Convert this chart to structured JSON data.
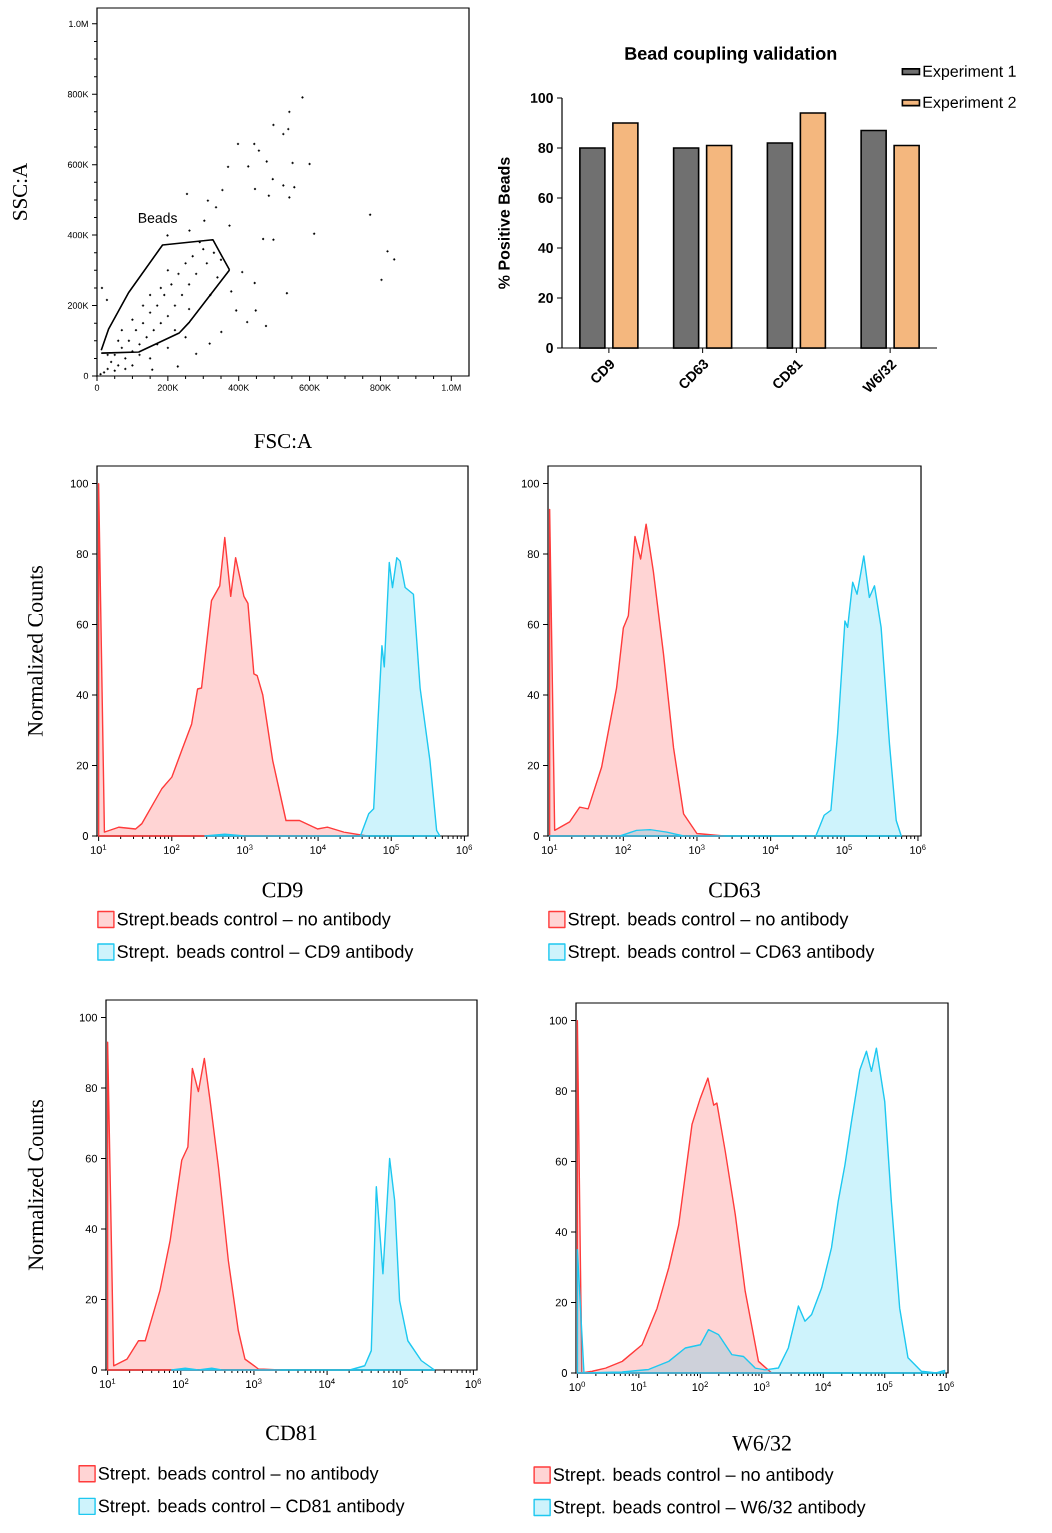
{
  "chart_data": [
    {
      "type": "scatter",
      "xlabel": "FSC:A",
      "ylabel": "SSC:A",
      "xlim": [
        0,
        1050000
      ],
      "ylim": [
        0,
        1045000
      ],
      "xticks": [
        0,
        {
          "value": 200000,
          "label": "200K"
        },
        {
          "value": 400000,
          "label": "400K"
        },
        {
          "value": 600000,
          "label": "600K"
        },
        {
          "value": 800000,
          "label": "800K"
        },
        {
          "value": 1000000,
          "label": "1.0M"
        }
      ],
      "yticks": [
        0,
        {
          "value": 200000,
          "label": "200K"
        },
        {
          "value": 400000,
          "label": "400K"
        },
        {
          "value": 600000,
          "label": "600K"
        },
        {
          "value": 800000,
          "label": "800K"
        },
        {
          "value": 1000000,
          "label": "1.0M"
        }
      ],
      "annotations": [
        "Beads"
      ],
      "series": [
        {
          "type": "scatter",
          "marker": "circle",
          "color": "#000000",
          "x": [
            580000,
            543000,
            498000,
            540000,
            526000,
            398000,
            444000,
            457000,
            600000,
            552000,
            370000,
            427000,
            496000,
            479000,
            557000,
            526000,
            543000,
            485000,
            446000,
            354000,
            254000,
            771000,
            613000,
            820000,
            839000,
            803000,
            536000,
            445000,
            410000,
            393000,
            448000,
            424000,
            477000,
            379000,
            498000,
            469000,
            313000,
            336000,
            303000,
            374000,
            261000,
            199000,
            14000,
            28000,
            228000,
            351000,
            318000,
            280000,
            156000,
            30000,
            40000,
            50000,
            60000,
            70000,
            80000,
            90000,
            100000,
            110000,
            120000,
            130000,
            140000,
            150000,
            160000,
            170000,
            180000,
            190000,
            200000,
            210000,
            220000,
            230000,
            240000,
            250000,
            260000,
            270000,
            280000,
            300000,
            310000,
            290000,
            200000,
            150000,
            100000,
            60000,
            30000,
            20000,
            10000,
            50000,
            100000,
            150000,
            200000,
            250000,
            80000,
            120000,
            170000,
            220000,
            320000,
            340000,
            330000,
            350000,
            260000,
            180000,
            130000,
            70000
          ],
          "values": [
            791000,
            750000,
            713000,
            701000,
            687000,
            659000,
            659000,
            640000,
            602000,
            605000,
            594000,
            595000,
            559000,
            609000,
            536000,
            541000,
            507000,
            512000,
            531000,
            528000,
            517000,
            458000,
            404000,
            354000,
            331000,
            273000,
            235000,
            264000,
            295000,
            186000,
            186000,
            153000,
            142000,
            240000,
            387000,
            389000,
            498000,
            479000,
            441000,
            427000,
            413000,
            399000,
            250000,
            216000,
            27000,
            125000,
            92000,
            63000,
            18000,
            20000,
            40000,
            60000,
            30000,
            80000,
            50000,
            100000,
            70000,
            130000,
            90000,
            150000,
            110000,
            180000,
            130000,
            200000,
            150000,
            230000,
            170000,
            260000,
            200000,
            290000,
            230000,
            320000,
            260000,
            340000,
            290000,
            360000,
            320000,
            380000,
            300000,
            230000,
            160000,
            100000,
            60000,
            10000,
            5000,
            15000,
            30000,
            50000,
            80000,
            110000,
            20000,
            60000,
            90000,
            130000,
            230000,
            280000,
            350000,
            330000,
            190000,
            250000,
            200000,
            130000
          ]
        },
        {
          "type": "line",
          "marker": "none",
          "color": "#000000",
          "x": [
            12000,
            33000,
            90000,
            185000,
            327000,
            374000
          ],
          "values": [
            73000,
            134000,
            238000,
            372000,
            387000,
            301000
          ]
        },
        {
          "type": "line",
          "marker": "none",
          "color": "#000000",
          "x": [
            12000,
            118000,
            232000,
            261000,
            374000
          ],
          "values": [
            65000,
            68000,
            122000,
            153000,
            301000
          ]
        }
      ]
    },
    {
      "type": "bar",
      "title": "Bead coupling validation",
      "ylabel": "% Positive Beads",
      "categories": [
        "CD9",
        "CD63",
        "CD81",
        "W6/32"
      ],
      "ylim": [
        0,
        100
      ],
      "yticks": [
        0,
        20,
        40,
        60,
        80,
        100
      ],
      "legend": "top right",
      "series": [
        {
          "name": "Experiment 1",
          "color": "#707070",
          "values": [
            80,
            80,
            82,
            87
          ]
        },
        {
          "name": "Experiment 2",
          "color": "#f4b77e",
          "values": [
            90,
            81,
            94,
            81
          ]
        }
      ]
    },
    {
      "type": "area",
      "log": "x",
      "xlabel": "CD9",
      "ylabel": "Normalized Counts",
      "legend": "bottom",
      "xlim": [
        9.5,
        1120000
      ],
      "ylim": [
        0,
        105
      ],
      "xticks": [
        {
          "value": 10,
          "label": "10$^{1}$"
        },
        {
          "value": 100,
          "label": "10$^{2}$"
        },
        {
          "value": 1000,
          "label": "10$^{3}$"
        },
        {
          "value": 10000,
          "label": "10$^{4}$"
        },
        {
          "value": 100000,
          "label": "10$^{5}$"
        },
        {
          "value": 1000000,
          "label": "10$^{6}$"
        }
      ],
      "yticks": [
        0,
        20,
        40,
        60,
        80,
        100
      ],
      "series": [
        {
          "name": "Strept.beads control – no antibody",
          "color": "#ff3b3b",
          "x": [
            10,
            12,
            19,
            32,
            39,
            73,
            100,
            137,
            187,
            225,
            255,
            349,
            453,
            530,
            639,
            746,
            968,
            1099,
            1325,
            1470,
            1754,
            2397,
            3640,
            5520,
            9790,
            13400,
            22500,
            46800
          ],
          "values": [
            100,
            1.1,
            2.5,
            2,
            3.5,
            13.4,
            16.7,
            24.3,
            31.8,
            41.7,
            42,
            66.8,
            71,
            84.7,
            68,
            79,
            68,
            66,
            46,
            45.5,
            40,
            21.4,
            4.4,
            4.4,
            2,
            2.5,
            1.1,
            0
          ]
        },
        {
          "name": "Strept. beads control – CD9 antibody",
          "color": "#1ec8f0",
          "x": [
            283,
            530,
            990,
            37900,
            49200,
            57500,
            65200,
            74600,
            80300,
            94000,
            104000,
            119000,
            132000,
            155000,
            201000,
            248000,
            338000,
            417000,
            462000
          ],
          "values": [
            0,
            0.5,
            0,
            0,
            6.3,
            7.7,
            31,
            54,
            48,
            77.6,
            70.5,
            79,
            78,
            70.5,
            68.6,
            42,
            21.4,
            1.6,
            0
          ]
        }
      ]
    },
    {
      "type": "area",
      "log": "x",
      "xlabel": "CD63",
      "legend": "bottom",
      "xlim": [
        9.5,
        1100000
      ],
      "ylim": [
        0,
        105
      ],
      "xticks": [
        {
          "value": 10,
          "label": "10$^{1}$"
        },
        {
          "value": 100,
          "label": "10$^{2}$"
        },
        {
          "value": 1000,
          "label": "10$^{3}$"
        },
        {
          "value": 10000,
          "label": "10$^{4}$"
        },
        {
          "value": 100000,
          "label": "10$^{5}$"
        },
        {
          "value": 1000000,
          "label": "10$^{6}$"
        }
      ],
      "yticks": [
        0,
        20,
        40,
        60,
        80,
        100
      ],
      "series": [
        {
          "name": "Strept. beads control – no antibody",
          "color": "#ff3b3b",
          "x": [
            10,
            11.7,
            18.7,
            25.6,
            33.3,
            50.7,
            81,
            100,
            117,
            144,
            172,
            204,
            256,
            351,
            481,
            658,
            1000,
            2310
          ],
          "values": [
            92.7,
            1.6,
            4,
            8.2,
            7.7,
            19.5,
            42,
            59,
            62.5,
            85,
            78.6,
            88.5,
            75,
            51.7,
            25,
            6.3,
            0.7,
            0
          ]
        },
        {
          "name": "Strept. beads control – CD63 antibody",
          "color": "#1ec8f0",
          "x": [
            10,
            90,
            151,
            231,
            390,
            658,
            41100,
            53300,
            65800,
            81100,
            102000,
            111000,
            130000,
            149000,
            184000,
            219000,
            257000,
            316000,
            411000,
            507000,
            593000
          ],
          "values": [
            0,
            0,
            1.6,
            1.8,
            1.1,
            0,
            0,
            5.9,
            7.3,
            29,
            61,
            59.2,
            72,
            68.6,
            79.5,
            67.7,
            71,
            59.2,
            26,
            4.4,
            0
          ]
        }
      ]
    },
    {
      "type": "area",
      "log": "x",
      "xlabel": "CD81",
      "ylabel": "Normalized Counts",
      "legend": "bottom",
      "xlim": [
        9.5,
        1120000
      ],
      "ylim": [
        0,
        105
      ],
      "xticks": [
        {
          "value": 10,
          "label": "10$^{1}$"
        },
        {
          "value": 100,
          "label": "10$^{2}$"
        },
        {
          "value": 1000,
          "label": "10$^{3}$"
        },
        {
          "value": 10000,
          "label": "10$^{4}$"
        },
        {
          "value": 100000,
          "label": "10$^{5}$"
        },
        {
          "value": 1000000,
          "label": "10$^{6}$"
        }
      ],
      "yticks": [
        0,
        20,
        40,
        60,
        80,
        100
      ],
      "series": [
        {
          "name": "Strept. beads control – no antibody",
          "color": "#ff3b3b",
          "x": [
            10,
            12.1,
            18.4,
            26.5,
            32.7,
            52,
            71.6,
            103,
            125,
            144,
            174,
            210,
            251,
            327,
            447,
            611,
            754,
            1150,
            2260
          ],
          "values": [
            93,
            1.2,
            3.1,
            8.3,
            8.3,
            22.6,
            36.8,
            59.5,
            63.3,
            85.6,
            79,
            88.4,
            76.6,
            57.6,
            31,
            11.2,
            3.1,
            0.3,
            0
          ]
        },
        {
          "name": "Strept. beads control – CD81 antibody",
          "color": "#1ec8f0",
          "x": [
            75,
            115,
            174,
            265,
            362,
            20400,
            32700,
            40200,
            47100,
            58000,
            71600,
            83700,
            98000,
            127000,
            193000,
            294000
          ],
          "values": [
            0,
            0.5,
            0,
            0.5,
            0,
            0,
            1.2,
            5.5,
            52,
            27.3,
            60,
            48.2,
            19.7,
            8.3,
            2.7,
            0
          ]
        }
      ]
    },
    {
      "type": "area",
      "log": "x",
      "xlabel": "W6/32",
      "legend": "bottom",
      "xlim": [
        0.95,
        1070000
      ],
      "ylim": [
        0,
        105
      ],
      "xticks": [
        {
          "value": 1,
          "label": "10$^{0}$"
        },
        {
          "value": 10,
          "label": "10$^{1}$"
        },
        {
          "value": 100,
          "label": "10$^{2}$"
        },
        {
          "value": 1000,
          "label": "10$^{3}$"
        },
        {
          "value": 10000,
          "label": "10$^{4}$"
        },
        {
          "value": 100000,
          "label": "10$^{5}$"
        },
        {
          "value": 1000000,
          "label": "10$^{6}$"
        }
      ],
      "yticks": [
        0,
        20,
        40,
        60,
        80,
        100
      ],
      "series": [
        {
          "name": "Strept. beads control – no antibody",
          "color": "#ff3b3b",
          "x": [
            1,
            1.18,
            1.75,
            2.88,
            5.37,
            11.3,
            19.8,
            30.6,
            44.5,
            73.2,
            100,
            133,
            165,
            186,
            254,
            370,
            537,
            883,
            1450,
            3940
          ],
          "values": [
            100,
            0,
            0.5,
            1.4,
            3.3,
            8,
            18.4,
            29.8,
            42,
            70.5,
            78,
            83.7,
            76,
            76.6,
            63,
            45,
            23.2,
            3.3,
            0,
            0
          ]
        },
        {
          "name": "Strept. beads control – W6/32 antibody",
          "color": "#1ec8f0",
          "x": [
            1,
            1.28,
            5.37,
            14.5,
            30.6,
            57,
            100,
            136,
            198,
            326,
            504,
            780,
            1130,
            1860,
            2700,
            3940,
            5040,
            6470,
            9400,
            13600,
            17500,
            22500,
            28800,
            39300,
            50400,
            60800,
            73200,
            100000,
            128000,
            175000,
            239000,
            394000,
            689000,
            940000
          ],
          "values": [
            35,
            0,
            0.3,
            1,
            3.3,
            7.1,
            8,
            12.3,
            10.9,
            5.2,
            4.7,
            1.4,
            0.9,
            1.4,
            7.1,
            19,
            14.7,
            16.6,
            24.1,
            35.5,
            48.7,
            59,
            71.4,
            86,
            91.3,
            85.6,
            92.2,
            77,
            48.7,
            18.4,
            4.3,
            0.5,
            0,
            0.7
          ]
        }
      ]
    }
  ]
}
